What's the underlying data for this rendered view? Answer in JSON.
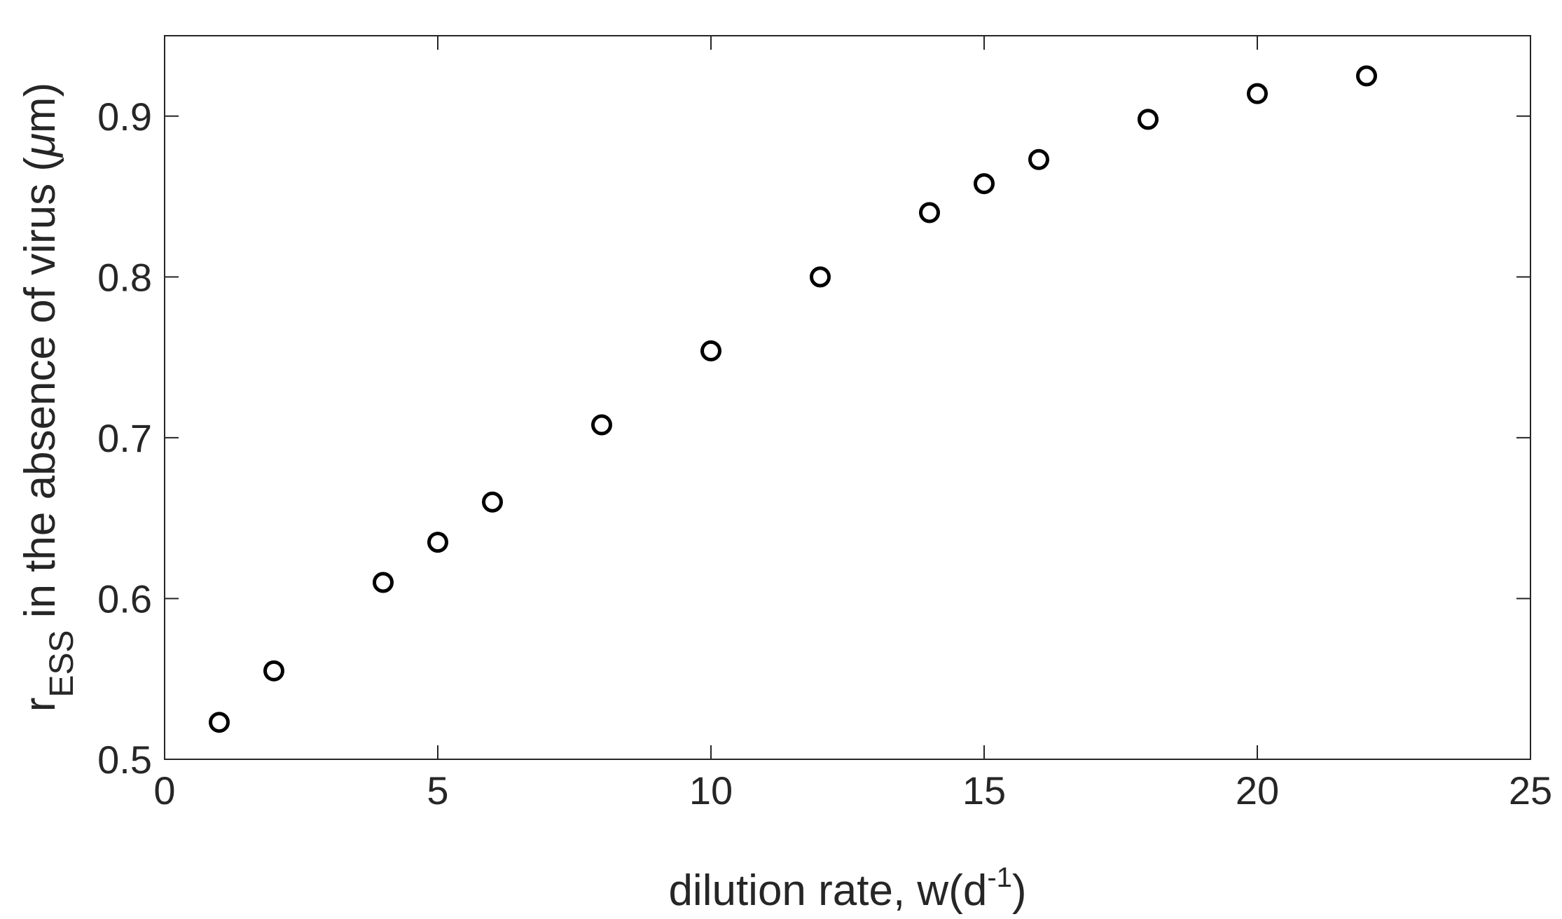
{
  "chart_data": {
    "type": "scatter",
    "title": "",
    "xlabel": {
      "before": "dilution rate, w(d",
      "sup": "-1",
      "after": ")"
    },
    "ylabel": {
      "main": "r",
      "sub": "ESS",
      "rest": " in the absence of virus (",
      "mu": "μ",
      "unit": "m)"
    },
    "xlim": [
      0,
      25
    ],
    "ylim": [
      0.5,
      0.95
    ],
    "xticks": [
      0,
      5,
      10,
      15,
      20,
      25
    ],
    "xtick_labels": [
      "0",
      "5",
      "10",
      "15",
      "20",
      "25"
    ],
    "yticks": [
      0.5,
      0.6,
      0.7,
      0.8,
      0.9
    ],
    "ytick_labels": [
      "0.5",
      "0.6",
      "0.7",
      "0.8",
      "0.9"
    ],
    "grid": false,
    "box": true,
    "marker": "open-circle",
    "colors": {
      "marker": "#000000",
      "axes": "#262626",
      "frame": "#a6a6a6"
    },
    "series": [
      {
        "x": [
          1,
          2,
          4,
          5,
          6,
          8,
          10,
          12,
          14,
          15,
          16,
          18,
          20,
          22
        ],
        "y": [
          0.523,
          0.555,
          0.61,
          0.635,
          0.66,
          0.708,
          0.754,
          0.8,
          0.84,
          0.858,
          0.873,
          0.898,
          0.914,
          0.925
        ]
      }
    ]
  }
}
